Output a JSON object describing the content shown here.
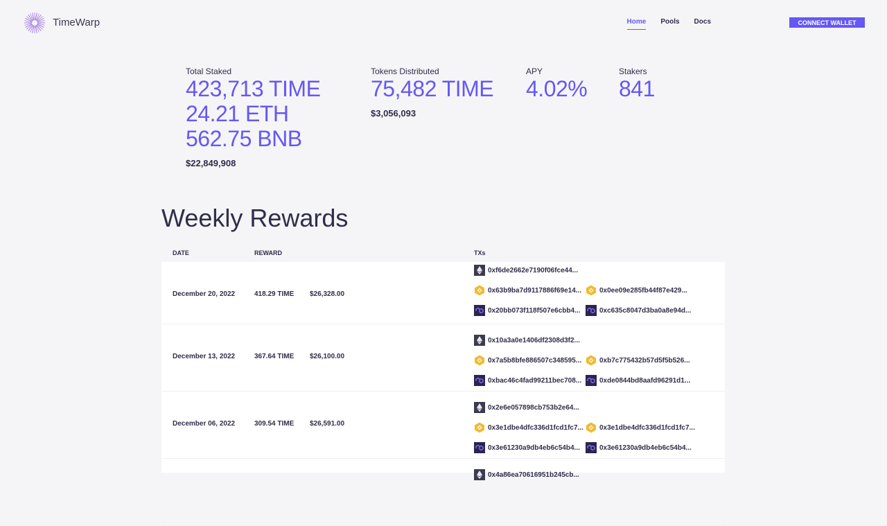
{
  "header": {
    "brand": "TimeWarp",
    "nav": [
      "Home",
      "Pools",
      "Docs"
    ],
    "button": "CONNECT WALLET"
  },
  "stats": [
    {
      "label": "Total Staked",
      "values": [
        "423,713 TIME",
        "24.21 ETH",
        "562.75 BNB"
      ],
      "usd": "$22,849,908"
    },
    {
      "label": "Tokens Distributed",
      "values": [
        "75,482 TIME"
      ],
      "usd": "$3,056,093"
    },
    {
      "label": "APY",
      "values": [
        "4.02%"
      ]
    },
    {
      "label": "Stakers",
      "values": [
        "841"
      ]
    }
  ],
  "rewards": {
    "title": "Weekly Rewards",
    "headers": [
      "DATE",
      "REWARD",
      "TXs"
    ],
    "rows": [
      {
        "date": "December 20, 2022",
        "reward": "418.29 TIME",
        "usd": "$26,328.00",
        "txs": {
          "eth": [
            "0xf6de2662e7190f06fce44..."
          ],
          "bnb": [
            "0x63b9ba7d9117886f69e14...",
            "0x0ee09e285fb44f87e429..."
          ],
          "poly": [
            "0x20bb073f118f507e6cbb4...",
            "0xc635c8047d3ba0a8e94d..."
          ]
        }
      },
      {
        "date": "December 13, 2022",
        "reward": "367.64 TIME",
        "usd": "$26,100.00",
        "txs": {
          "eth": [
            "0x10a3a0e1406df2308d3f2..."
          ],
          "bnb": [
            "0x7a5b8bfe886507c348595...",
            "0xb7c775432b57d5f5b526..."
          ],
          "poly": [
            "0xbac46c4fad99211bec708...",
            "0xde0844bd8aafd96291d1..."
          ]
        }
      },
      {
        "date": "December 06, 2022",
        "reward": "309.54 TIME",
        "usd": "$26,591.00",
        "txs": {
          "eth": [
            "0x2e6e057898cb753b2e64..."
          ],
          "bnb": [
            "0x3e1dbe4dfc336d1fcd1fc7...",
            "0x3e1dbe4dfc336d1fcd1fc7..."
          ],
          "poly": [
            "0x3e61230a9db4eb6c54b4...",
            "0x3e61230a9db4eb6c54b4..."
          ]
        }
      },
      {
        "txs": {
          "eth": [
            "0x4a86ea70616951b245cb..."
          ]
        }
      }
    ]
  }
}
